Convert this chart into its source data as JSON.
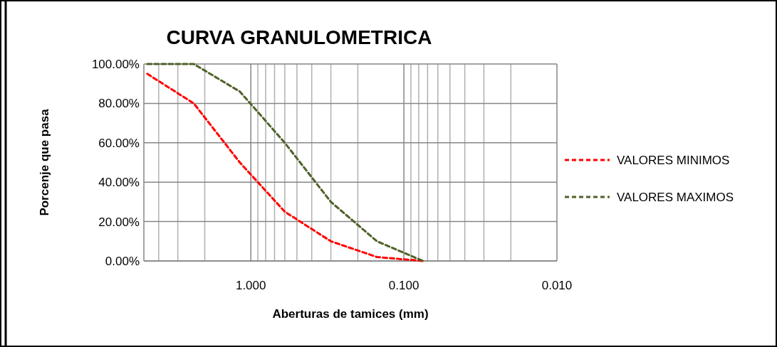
{
  "chart_data": {
    "type": "line",
    "title": "CURVA GRANULOMETRICA",
    "xlabel": "Aberturas de tamices (mm)",
    "ylabel": "Porcenje que pasa",
    "log": "x",
    "xlim": [
      5,
      0.01
    ],
    "xticks": [
      {
        "value": 1,
        "label": "1.000"
      },
      {
        "value": 0.1,
        "label": "0.100"
      },
      {
        "value": 0.01,
        "label": "0.010"
      }
    ],
    "ylim": [
      0,
      100
    ],
    "yticks": [
      {
        "value": 0,
        "label": "0.00%"
      },
      {
        "value": 20,
        "label": "20.00%"
      },
      {
        "value": 40,
        "label": "40.00%"
      },
      {
        "value": 60,
        "label": "60.00%"
      },
      {
        "value": 80,
        "label": "80.00%"
      },
      {
        "value": 100,
        "label": "100.00%"
      }
    ],
    "x": [
      4.75,
      2.36,
      1.18,
      0.6,
      0.3,
      0.15,
      0.075
    ],
    "series": [
      {
        "name": "VALORES MINIMOS",
        "color": "#ff0000",
        "values": [
          95,
          80,
          50,
          25,
          10,
          2,
          0
        ]
      },
      {
        "name": "VALORES MAXIMOS",
        "color": "#4f6228",
        "values": [
          100,
          100,
          86,
          60,
          30,
          10,
          0
        ]
      }
    ],
    "grid": true,
    "legend": "right",
    "line_style": "dashed",
    "marker": "none"
  }
}
